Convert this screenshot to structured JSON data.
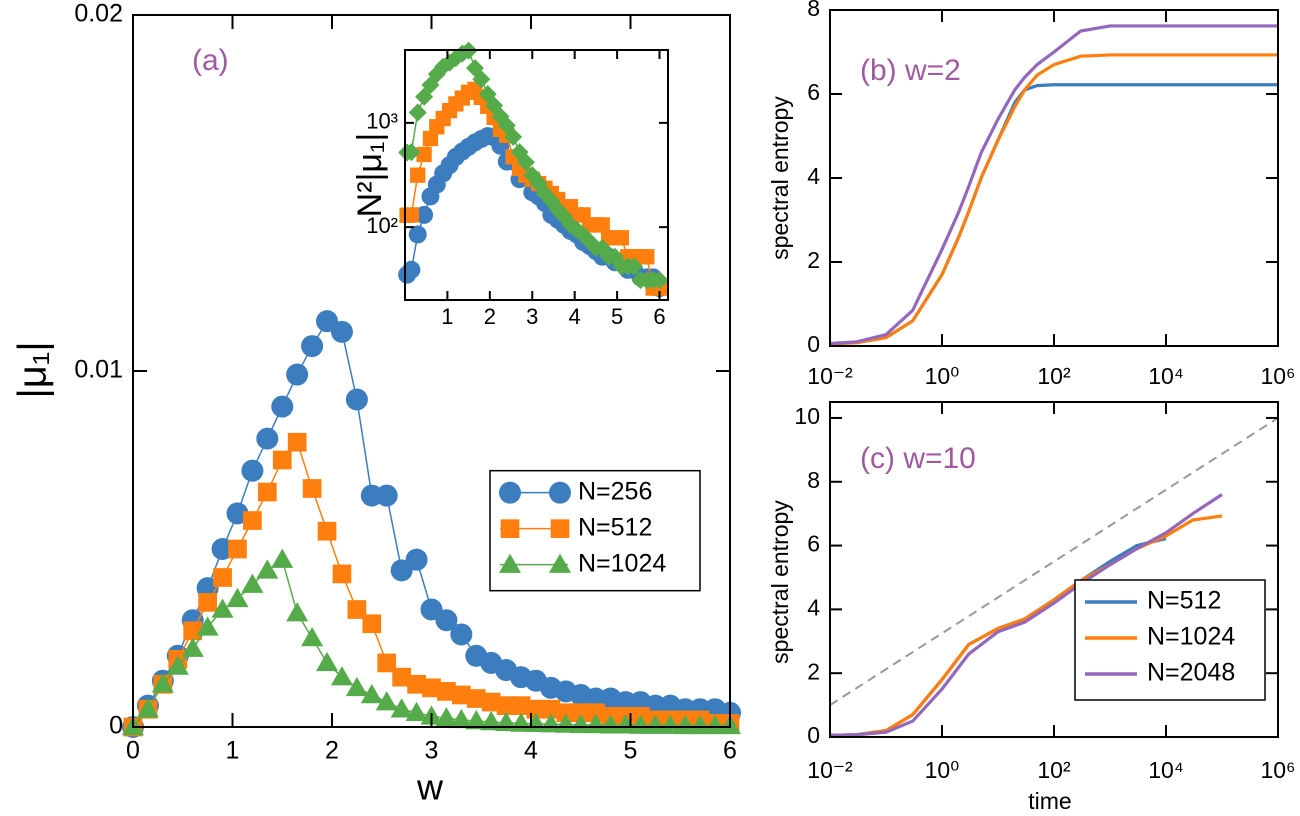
{
  "chart_data": [
    {
      "type": "line",
      "panel_label": "(a)",
      "xlabel": "w",
      "ylabel": "|μ₁|",
      "xlim": [
        0,
        6
      ],
      "ylim": [
        0,
        0.02
      ],
      "xticks": [
        0,
        1,
        2,
        3,
        4,
        5,
        6
      ],
      "yticks": [
        0,
        0.01,
        0.02
      ],
      "legend": "center right",
      "x": [
        0,
        0.15,
        0.3,
        0.45,
        0.6,
        0.75,
        0.9,
        1.05,
        1.2,
        1.35,
        1.5,
        1.65,
        1.8,
        1.95,
        2.1,
        2.25,
        2.4,
        2.55,
        2.7,
        2.85,
        3,
        3.15,
        3.3,
        3.45,
        3.6,
        3.75,
        3.9,
        4.05,
        4.2,
        4.35,
        4.5,
        4.65,
        4.8,
        4.95,
        5.1,
        5.25,
        5.4,
        5.55,
        5.7,
        5.85,
        6
      ],
      "series": [
        {
          "name": "N=256",
          "color": "#3b7dbf",
          "marker": "circle",
          "values": [
            0,
            0.0006,
            0.0013,
            0.002,
            0.003,
            0.0039,
            0.005,
            0.006,
            0.0072,
            0.0081,
            0.009,
            0.0099,
            0.0107,
            0.0114,
            0.0111,
            0.0092,
            0.0065,
            0.0065,
            0.0044,
            0.0047,
            0.0033,
            0.003,
            0.0026,
            0.002,
            0.0018,
            0.0016,
            0.0014,
            0.0013,
            0.0011,
            0.001,
            0.0009,
            0.0008,
            0.0008,
            0.0007,
            0.0007,
            0.0006,
            0.0006,
            0.0005,
            0.0005,
            0.0005,
            0.0004
          ]
        },
        {
          "name": "N=512",
          "color": "#ff7f0e",
          "marker": "square",
          "values": [
            0,
            0.0005,
            0.0012,
            0.0019,
            0.0027,
            0.0035,
            0.0042,
            0.005,
            0.0058,
            0.0066,
            0.0075,
            0.008,
            0.0067,
            0.0055,
            0.0043,
            0.0033,
            0.0029,
            0.0018,
            0.0014,
            0.0012,
            0.0011,
            0.001,
            0.0009,
            0.0008,
            0.0007,
            0.0006,
            0.0006,
            0.0005,
            0.0005,
            0.0004,
            0.0004,
            0.0004,
            0.0003,
            0.0003,
            0.0003,
            0.0002,
            0.0002,
            0.0002,
            0.0002,
            0.0001,
            0.0001
          ]
        },
        {
          "name": "N=1024",
          "color": "#55ab4a",
          "marker": "triangle",
          "values": [
            0,
            0.0005,
            0.0012,
            0.0017,
            0.0022,
            0.0028,
            0.0033,
            0.0036,
            0.004,
            0.0044,
            0.0047,
            0.0032,
            0.0025,
            0.0018,
            0.0014,
            0.0011,
            0.0009,
            0.0007,
            0.0005,
            0.0004,
            0.0003,
            0.00025,
            0.0002,
            0.00017,
            0.00014,
            0.00012,
            0.0001,
            9e-05,
            8e-05,
            7e-05,
            6e-05,
            6e-05,
            5e-05,
            5e-05,
            4e-05,
            4e-05,
            4e-05,
            3e-05,
            3e-05,
            3e-05,
            3e-05
          ]
        }
      ]
    },
    {
      "type": "line",
      "ylabel": "N²|μ₁|",
      "yscale": "log",
      "xlim": [
        0,
        6.2
      ],
      "ylim": [
        20,
        5000
      ],
      "xticks": [
        1,
        2,
        3,
        4,
        5,
        6
      ],
      "yticks": [
        {
          "value": 100,
          "label": "10²"
        },
        {
          "value": 1000,
          "label": "10³"
        }
      ],
      "x": [
        0.05,
        0.15,
        0.3,
        0.45,
        0.6,
        0.75,
        0.9,
        1.05,
        1.2,
        1.35,
        1.5,
        1.65,
        1.8,
        1.95,
        2.1,
        2.25,
        2.4,
        2.55,
        2.7,
        2.85,
        3,
        3.15,
        3.3,
        3.45,
        3.6,
        3.75,
        3.9,
        4.05,
        4.2,
        4.35,
        4.5,
        4.65,
        4.8,
        4.95,
        5.1,
        5.25,
        5.4,
        5.55,
        5.7,
        5.85,
        6
      ],
      "series": [
        {
          "color": "#3b7dbf",
          "marker": "circle",
          "values": [
            35,
            39,
            85,
            131,
            197,
            256,
            328,
            393,
            472,
            531,
            590,
            649,
            701,
            747,
            727,
            603,
            426,
            426,
            288,
            308,
            216,
            197,
            170,
            131,
            118,
            105,
            92,
            85,
            72,
            66,
            59,
            52,
            52,
            46,
            46,
            39,
            39,
            33,
            33,
            33,
            26
          ]
        },
        {
          "color": "#ff7f0e",
          "marker": "square",
          "values": [
            130,
            131,
            315,
            498,
            708,
            918,
            1101,
            1311,
            1520,
            1730,
            1966,
            2097,
            1756,
            1442,
            1127,
            865,
            760,
            472,
            367,
            315,
            288,
            262,
            236,
            210,
            184,
            157,
            157,
            131,
            131,
            105,
            105,
            105,
            79,
            79,
            79,
            52,
            52,
            52,
            52,
            26,
            26
          ]
        },
        {
          "color": "#55ab4a",
          "marker": "diamond",
          "values": [
            520,
            524,
            1258,
            1783,
            2307,
            2936,
            3460,
            3775,
            4194,
            4614,
            4928,
            3355,
            2621,
            1887,
            1468,
            1153,
            944,
            734,
            524,
            419,
            315,
            262,
            210,
            178,
            147,
            126,
            105,
            94,
            84,
            73,
            63,
            63,
            52,
            52,
            42,
            42,
            42,
            31,
            31,
            31,
            31
          ]
        }
      ]
    },
    {
      "type": "line",
      "panel_label": "(b) w=2",
      "ylabel": "spectral entropy",
      "xscale": "log",
      "xlim": [
        0.01,
        1000000
      ],
      "ylim": [
        0,
        8
      ],
      "xticks": [
        {
          "value": 0.01,
          "label": "10⁻²"
        },
        {
          "value": 1,
          "label": "10⁰"
        },
        {
          "value": 100,
          "label": "10²"
        },
        {
          "value": 10000,
          "label": "10⁴"
        },
        {
          "value": 1000000,
          "label": "10⁶"
        }
      ],
      "yticks": [
        0,
        2,
        4,
        6,
        8
      ],
      "x": [
        0.01,
        0.03,
        0.1,
        0.3,
        1,
        2,
        3,
        5,
        10,
        20,
        30,
        50,
        100,
        300,
        1000,
        10000,
        100000,
        1000000
      ],
      "series": [
        {
          "color": "#3b7dbf",
          "values": [
            0.05,
            0.08,
            0.2,
            0.6,
            1.7,
            2.6,
            3.2,
            4.0,
            4.9,
            5.8,
            6.1,
            6.2,
            6.22,
            6.22,
            6.22,
            6.22,
            6.22,
            6.22
          ]
        },
        {
          "color": "#ff7f0e",
          "values": [
            0.05,
            0.08,
            0.2,
            0.6,
            1.7,
            2.6,
            3.2,
            4.0,
            4.9,
            5.7,
            6.1,
            6.45,
            6.7,
            6.9,
            6.93,
            6.93,
            6.93,
            6.93
          ]
        },
        {
          "color": "#9467bd",
          "values": [
            0.06,
            0.1,
            0.27,
            0.85,
            2.3,
            3.2,
            3.8,
            4.6,
            5.4,
            6.1,
            6.4,
            6.7,
            7.0,
            7.5,
            7.62,
            7.62,
            7.62,
            7.62
          ]
        }
      ]
    },
    {
      "type": "line",
      "panel_label": "(c) w=10",
      "xlabel": "time",
      "ylabel": "spectral entropy",
      "xscale": "log",
      "xlim": [
        0.01,
        1000000
      ],
      "ylim": [
        0,
        10.5
      ],
      "xticks": [
        {
          "value": 0.01,
          "label": "10⁻²"
        },
        {
          "value": 1,
          "label": "10⁰"
        },
        {
          "value": 100,
          "label": "10²"
        },
        {
          "value": 10000,
          "label": "10⁴"
        },
        {
          "value": 1000000,
          "label": "10⁶"
        }
      ],
      "yticks": [
        0,
        2,
        4,
        6,
        8,
        10
      ],
      "legend": "lower right",
      "reference_line": {
        "color": "#999999",
        "x": [
          0.01,
          1000000
        ],
        "values": [
          1,
          10
        ]
      },
      "series": [
        {
          "name": "N=512",
          "color": "#3b7dbf",
          "x": [
            0.01,
            0.03,
            0.1,
            0.3,
            1,
            3,
            10,
            30,
            100,
            300,
            1000,
            3000,
            10000
          ],
          "values": [
            0.05,
            0.07,
            0.2,
            0.7,
            1.8,
            2.9,
            3.4,
            3.7,
            4.3,
            4.9,
            5.5,
            6.0,
            6.22
          ]
        },
        {
          "name": "N=1024",
          "color": "#ff7f0e",
          "x": [
            0.01,
            0.03,
            0.1,
            0.3,
            1,
            3,
            10,
            30,
            100,
            300,
            1000,
            3000,
            10000,
            30000,
            100000
          ],
          "values": [
            0.05,
            0.07,
            0.2,
            0.7,
            1.8,
            2.9,
            3.4,
            3.7,
            4.3,
            4.9,
            5.4,
            5.9,
            6.3,
            6.8,
            6.93
          ]
        },
        {
          "name": "N=2048",
          "color": "#9467bd",
          "x": [
            0.01,
            0.03,
            0.1,
            0.3,
            1,
            3,
            10,
            30,
            100,
            300,
            1000,
            3000,
            10000,
            30000,
            100000
          ],
          "values": [
            0.05,
            0.07,
            0.15,
            0.5,
            1.5,
            2.6,
            3.3,
            3.6,
            4.2,
            4.8,
            5.4,
            5.9,
            6.4,
            7.0,
            7.6
          ]
        }
      ]
    }
  ]
}
